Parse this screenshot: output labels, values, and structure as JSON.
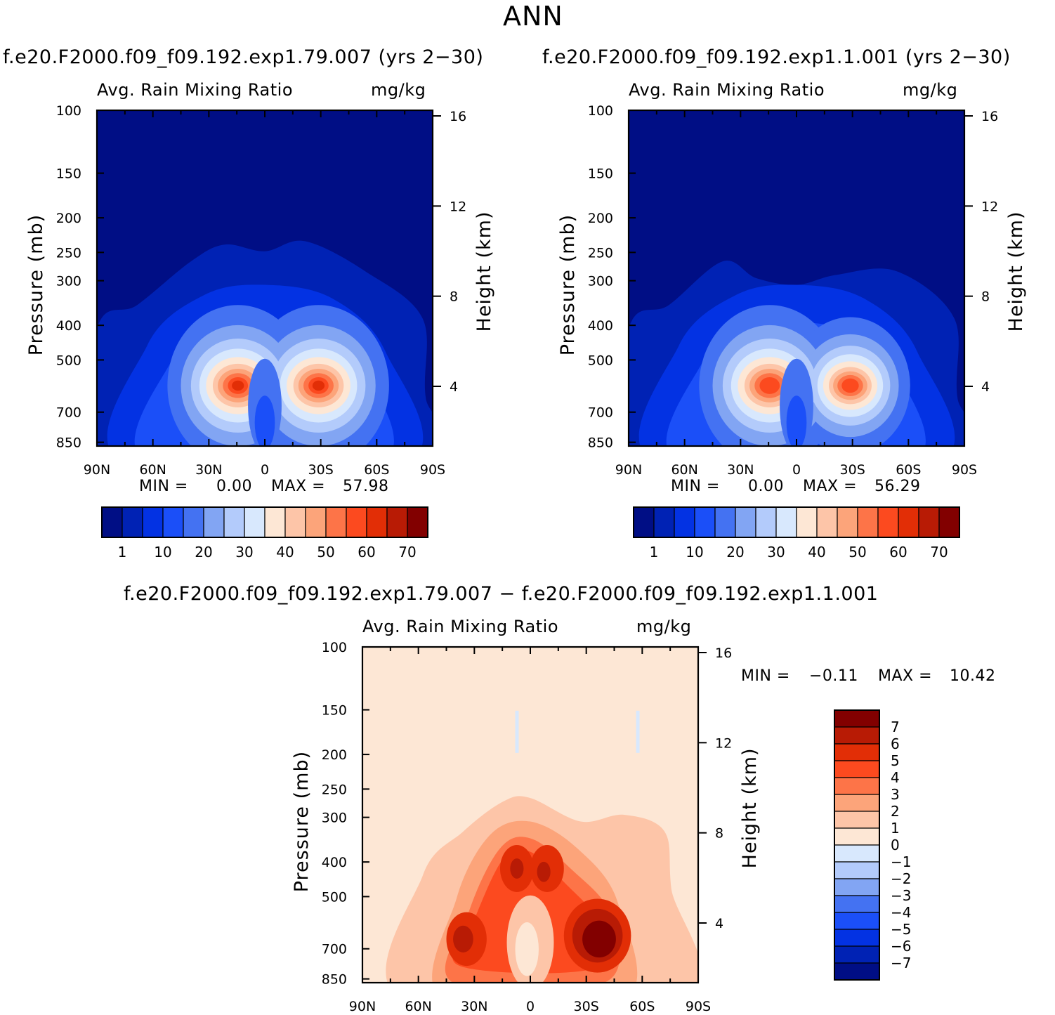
{
  "page": {
    "title": "ANN"
  },
  "chart_data": [
    {
      "type": "contour",
      "case": "f.e20.F2000.f09_f09.192.exp1.79.007 (yrs 2−30)",
      "left_label": "Avg. Rain Mixing Ratio",
      "right_label": "mg/kg",
      "ylabel": "Pressure (mb)",
      "ylabel_right": "Height (km)",
      "min_label": "MIN =",
      "min": "0.00",
      "max_label": "MAX =",
      "max": "57.98",
      "x_ticks": [
        "90N",
        "60N",
        "30N",
        "0",
        "30S",
        "60S",
        "90S"
      ],
      "y_ticks": [
        "100",
        "150",
        "200",
        "250",
        "300",
        "400",
        "500",
        "700",
        "850"
      ],
      "y_right_ticks": [
        "16",
        "12",
        "8",
        "4"
      ],
      "colorbar_ticks": [
        "1",
        "10",
        "20",
        "30",
        "40",
        "50",
        "60",
        "70"
      ]
    },
    {
      "type": "contour",
      "case": "f.e20.F2000.f09_f09.192.exp1.1.001 (yrs 2−30)",
      "left_label": "Avg. Rain Mixing Ratio",
      "right_label": "mg/kg",
      "ylabel": "Pressure (mb)",
      "ylabel_right": "Height (km)",
      "min_label": "MIN =",
      "min": "0.00",
      "max_label": "MAX =",
      "max": "56.29",
      "x_ticks": [
        "90N",
        "60N",
        "30N",
        "0",
        "30S",
        "60S",
        "90S"
      ],
      "y_ticks": [
        "100",
        "150",
        "200",
        "250",
        "300",
        "400",
        "500",
        "700",
        "850"
      ],
      "y_right_ticks": [
        "16",
        "12",
        "8",
        "4"
      ],
      "colorbar_ticks": [
        "1",
        "10",
        "20",
        "30",
        "40",
        "50",
        "60",
        "70"
      ]
    },
    {
      "type": "contour",
      "case": "f.e20.F2000.f09_f09.192.exp1.79.007 − f.e20.F2000.f09_f09.192.exp1.1.001",
      "left_label": "Avg. Rain Mixing Ratio",
      "right_label": "mg/kg",
      "ylabel": "Pressure (mb)",
      "ylabel_right": "Height (km)",
      "min_label": "MIN =",
      "min": "−0.11",
      "max_label": "MAX =",
      "max": "10.42",
      "x_ticks": [
        "90N",
        "60N",
        "30N",
        "0",
        "30S",
        "60S",
        "90S"
      ],
      "y_ticks": [
        "100",
        "150",
        "200",
        "250",
        "300",
        "400",
        "500",
        "700",
        "850"
      ],
      "y_right_ticks": [
        "16",
        "12",
        "8",
        "4"
      ],
      "colorbar_ticks": [
        "7",
        "6",
        "5",
        "4",
        "3",
        "2",
        "1",
        "0",
        "−1",
        "−2",
        "−3",
        "−4",
        "−5",
        "−6",
        "−7"
      ]
    }
  ],
  "colors": {
    "abs_scale": [
      "#000e85",
      "#0022b4",
      "#0332e3",
      "#1b4ff8",
      "#4472f2",
      "#82a5f3",
      "#b3cbfb",
      "#d8e8fd",
      "#fde7d5",
      "#fdc5a8",
      "#fca47a",
      "#fd7448",
      "#fc4a1f",
      "#e22e06",
      "#b81b05",
      "#820000"
    ],
    "diff_scale": [
      "#820000",
      "#b81b05",
      "#e22e06",
      "#fc4a1f",
      "#fd7448",
      "#fca47a",
      "#fdc5a8",
      "#fde7d5",
      "#d8e8fd",
      "#b3cbfb",
      "#82a5f3",
      "#4472f2",
      "#1b4ff8",
      "#0332e3",
      "#0022b4",
      "#000e85"
    ]
  }
}
